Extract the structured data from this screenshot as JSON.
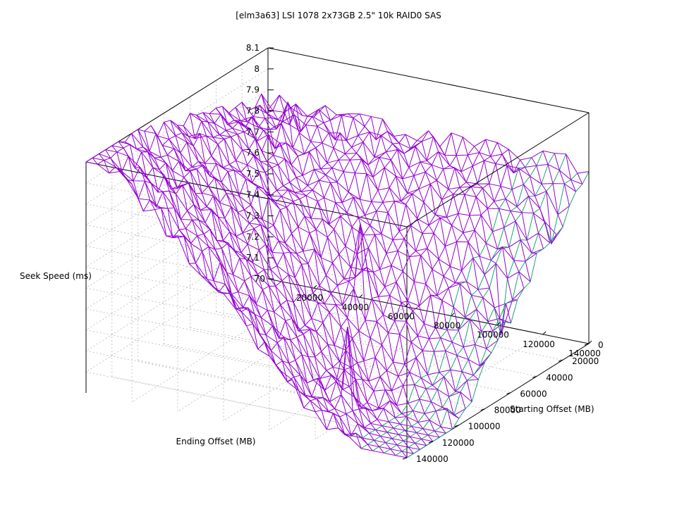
{
  "chart_data": {
    "type": "surface",
    "title": "[elm3a63] LSI 1078 2x73GB 2.5\" 10k RAID0 SAS",
    "xlabel": "Ending Offset (MB)",
    "ylabel": "Starting Offset (MB)",
    "zlabel": "Seek Speed (ms)",
    "xlim": [
      0,
      140000
    ],
    "ylim": [
      0,
      140000
    ],
    "zlim": [
      7,
      8.1
    ],
    "x_ticks": [
      "20000",
      "40000",
      "60000",
      "80000",
      "100000",
      "120000",
      "140000"
    ],
    "y_ticks": [
      "0",
      "20000",
      "40000",
      "60000",
      "80000",
      "100000",
      "120000",
      "140000"
    ],
    "z_ticks": [
      "7",
      "7.1",
      "7.2",
      "7.3",
      "7.4",
      "7.5",
      "7.6",
      "7.7",
      "7.8",
      "7.9",
      "8",
      "8.1"
    ],
    "x_origin_label": "0",
    "grid_size": [
      28,
      28
    ],
    "grid_step_mb": 5000,
    "surface_model": {
      "corner_x0_y0": 7.85,
      "corner_xmax_y0": 7.6,
      "corner_x0_ymax": 7.95,
      "corner_xmax_ymax": 7.0,
      "min_region_x": 100000,
      "min_region_y": 100000,
      "spikes": [
        {
          "x": 20000,
          "y": 20000,
          "z": 7.95
        },
        {
          "x": 80000,
          "y": 70000,
          "z": 7.7
        },
        {
          "x": 130000,
          "y": 50000,
          "z": 7.25
        },
        {
          "x": 135000,
          "y": 20000,
          "z": 7.5
        },
        {
          "x": 100000,
          "y": 115000,
          "z": 7.45
        }
      ]
    },
    "series": [
      {
        "name": "surface upper side",
        "color": "#9400d3"
      },
      {
        "name": "surface underside",
        "color": "#1aa37a"
      }
    ],
    "grid": true
  }
}
